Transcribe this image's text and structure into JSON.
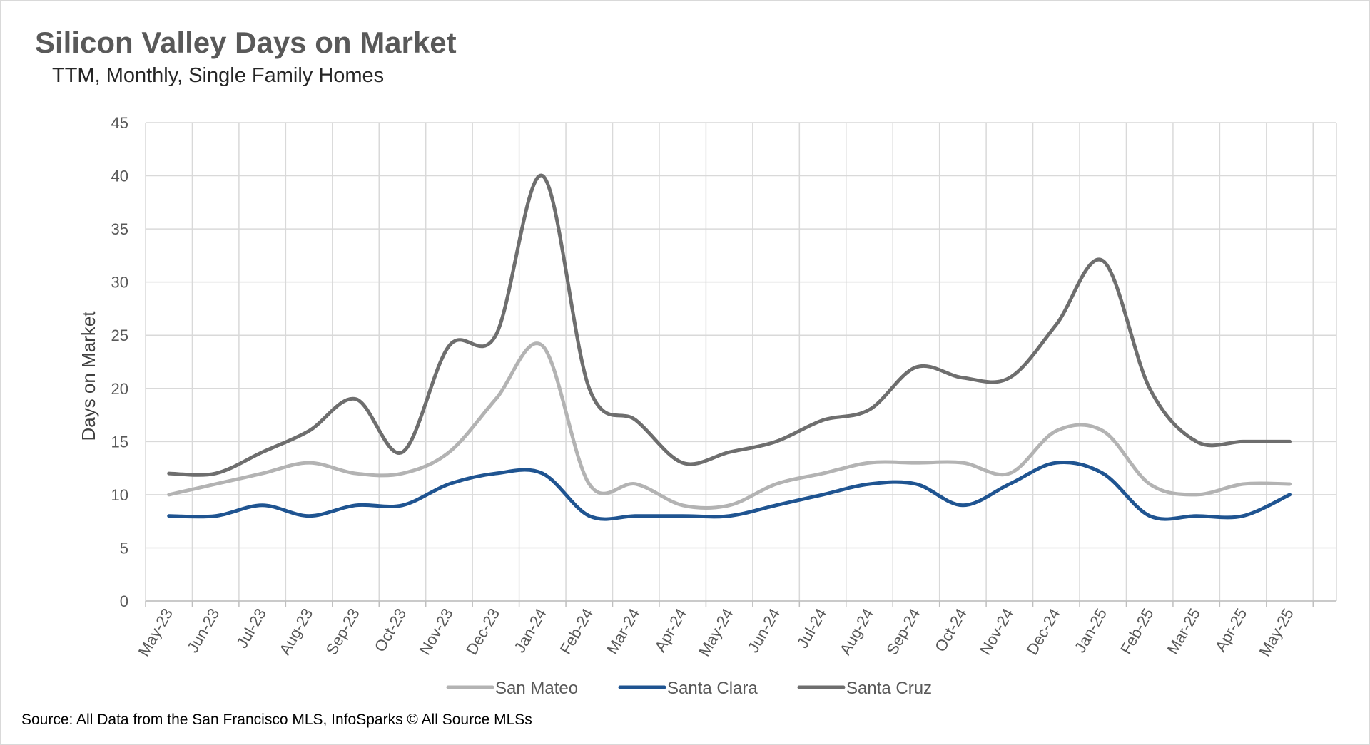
{
  "title": "Silicon Valley Days on Market",
  "subtitle": "TTM, Monthly, Single Family Homes",
  "source": "Source: All Data from the San Francisco MLS, InfoSparks © All Source MLSs",
  "chart_data": {
    "type": "line",
    "title": "Silicon Valley Days on Market",
    "subtitle": "TTM, Monthly, Single Family Homes",
    "xlabel": "",
    "ylabel": "Days on Market",
    "ylim": [
      0,
      45
    ],
    "yticks": [
      0,
      5,
      10,
      15,
      20,
      25,
      30,
      35,
      40,
      45
    ],
    "grid": true,
    "legend": "bottom",
    "categories": [
      "May-23",
      "Jun-23",
      "Jul-23",
      "Aug-23",
      "Sep-23",
      "Oct-23",
      "Nov-23",
      "Dec-23",
      "Jan-24",
      "Feb-24",
      "Mar-24",
      "Apr-24",
      "May-24",
      "Jun-24",
      "Jul-24",
      "Aug-24",
      "Sep-24",
      "Oct-24",
      "Nov-24",
      "Dec-24",
      "Jan-25",
      "Feb-25",
      "Mar-25",
      "Apr-25",
      "May-25"
    ],
    "series": [
      {
        "name": "San Mateo",
        "color": "#b3b3b3",
        "values": [
          10,
          11,
          12,
          13,
          12,
          12,
          14,
          19,
          24,
          11,
          11,
          9,
          9,
          11,
          12,
          13,
          13,
          13,
          12,
          16,
          16,
          11,
          10,
          11,
          11
        ]
      },
      {
        "name": "Santa Clara",
        "color": "#1f5491",
        "values": [
          8,
          8,
          9,
          8,
          9,
          9,
          11,
          12,
          12,
          8,
          8,
          8,
          8,
          9,
          10,
          11,
          11,
          9,
          11,
          13,
          12,
          8,
          8,
          8,
          10
        ]
      },
      {
        "name": "Santa Cruz",
        "color": "#6e6e6e",
        "values": [
          12,
          12,
          14,
          16,
          19,
          14,
          24,
          25,
          40,
          20,
          17,
          13,
          14,
          15,
          17,
          18,
          22,
          21,
          21,
          26,
          32,
          20,
          15,
          15,
          15
        ]
      }
    ]
  }
}
